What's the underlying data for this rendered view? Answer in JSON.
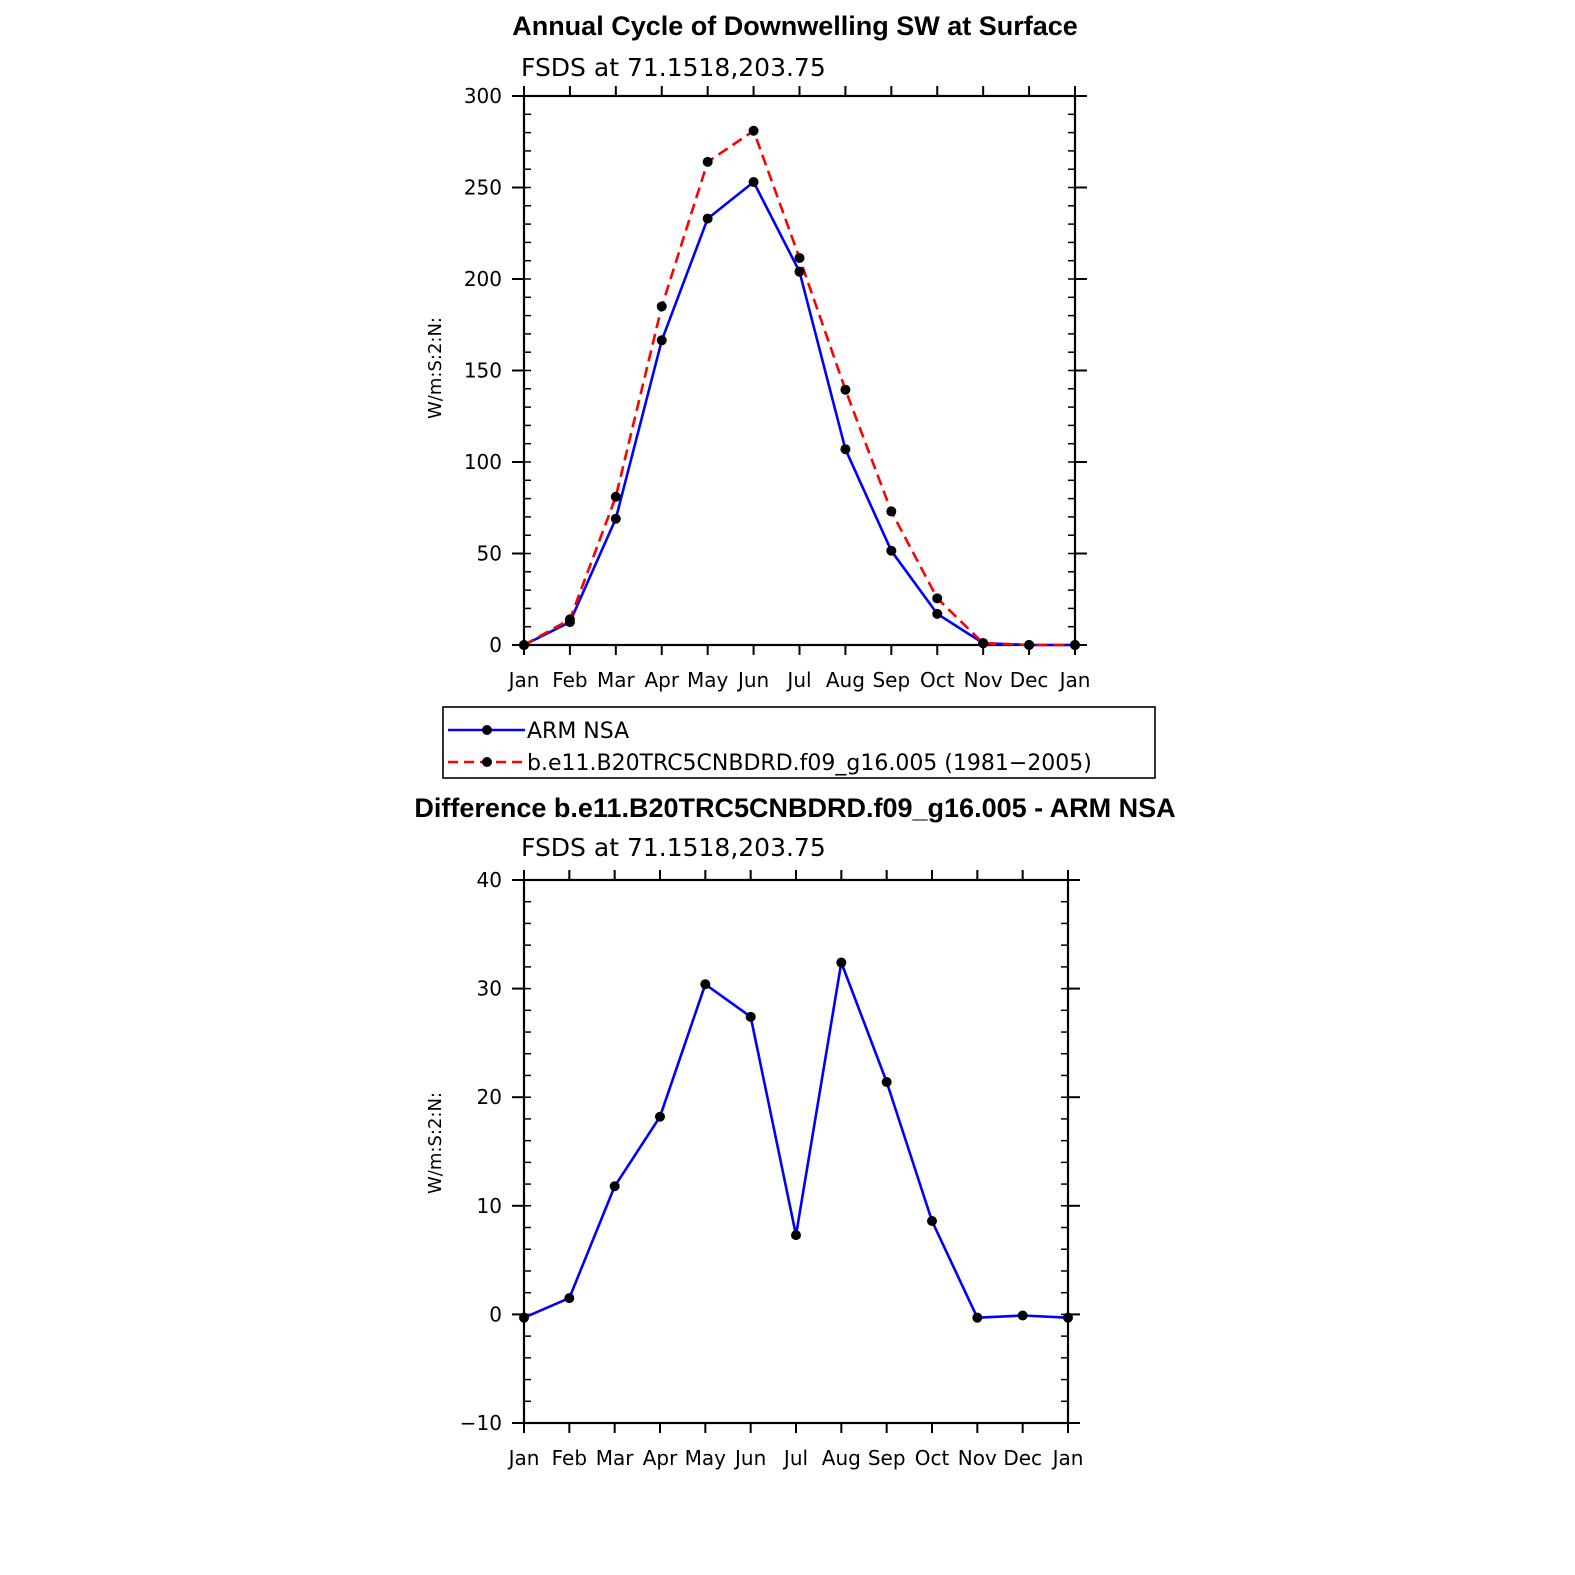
{
  "chart_data": [
    {
      "type": "line",
      "title": "Annual Cycle of Downwelling SW at Surface",
      "subtitle": "FSDS at 71.1518,203.75",
      "ylabel": "W/m:S:2:N:",
      "ylim": [
        0,
        300
      ],
      "yticks": [
        0,
        50,
        100,
        150,
        200,
        250,
        300
      ],
      "categories": [
        "Jan",
        "Feb",
        "Mar",
        "Apr",
        "May",
        "Jun",
        "Jul",
        "Aug",
        "Sep",
        "Oct",
        "Nov",
        "Dec",
        "Jan"
      ],
      "series": [
        {
          "name": "ARM NSA",
          "color": "#0000ff",
          "dash": "solid",
          "values": [
            0,
            12.5,
            69,
            166.5,
            233,
            253,
            204,
            107,
            51.5,
            17,
            1,
            0,
            0
          ]
        },
        {
          "name": "b.e11.B20TRC5CNBDRD.f09_g16.005 (1981−2005)",
          "color": "#ff0000",
          "dash": "dashed",
          "values": [
            0,
            14,
            81,
            185,
            264,
            281,
            211.5,
            139.5,
            73,
            25.5,
            1,
            0,
            0
          ]
        }
      ],
      "legend": "below"
    },
    {
      "type": "line",
      "title": "Difference b.e11.B20TRC5CNBDRD.f09_g16.005 - ARM NSA",
      "subtitle": "FSDS at 71.1518,203.75",
      "ylabel": "W/m:S:2:N:",
      "ylim": [
        -10,
        40
      ],
      "yticks": [
        -10,
        0,
        10,
        20,
        30,
        40
      ],
      "ytick_labels": [
        "−10",
        "0",
        "10",
        "20",
        "30",
        "40"
      ],
      "categories": [
        "Jan",
        "Feb",
        "Mar",
        "Apr",
        "May",
        "Jun",
        "Jul",
        "Aug",
        "Sep",
        "Oct",
        "Nov",
        "Dec",
        "Jan"
      ],
      "series": [
        {
          "color": "#0000ff",
          "dash": "solid",
          "values": [
            -0.3,
            1.5,
            11.8,
            18.2,
            30.4,
            27.4,
            7.3,
            32.4,
            21.4,
            8.6,
            -0.3,
            -0.1,
            -0.3
          ]
        }
      ]
    }
  ]
}
